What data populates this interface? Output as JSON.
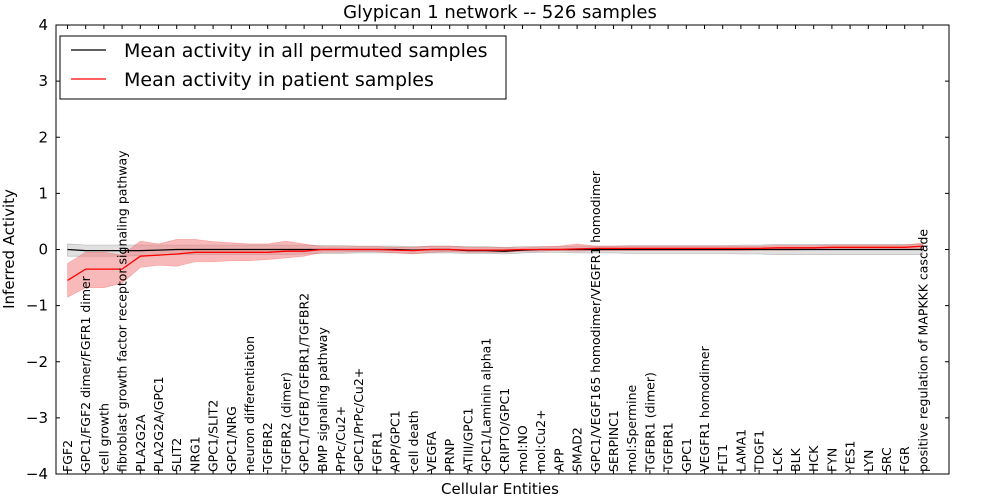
{
  "chart_data": {
    "type": "line",
    "title": "Glypican 1 network -- 526 samples",
    "xlabel": "Cellular Entities",
    "ylabel": "Inferred Activity",
    "ylim": [
      -4,
      4
    ],
    "yticks": [
      -4,
      -3,
      -2,
      -1,
      0,
      1,
      2,
      3,
      4
    ],
    "ytick_labels": [
      "−4",
      "−3",
      "−2",
      "−1",
      "0",
      "1",
      "2",
      "3",
      "4"
    ],
    "legend_position": "top-left",
    "categories": [
      "FGF2",
      "GPC1/FGF2 dimer/FGFR1 dimer",
      "cell growth",
      "fibroblast growth factor receptor signaling pathway",
      "PLA2G2A",
      "PLA2G2A/GPC1",
      "SLIT2",
      "NRG1",
      "GPC1/SLIT2",
      "GPC1/NRG",
      "neuron differentiation",
      "TGFBR2",
      "TGFBR2 (dimer)",
      "GPC1/TGFB/TGFBR1/TGFBR2",
      "BMP signaling pathway",
      "PrPc/Cu2+",
      "GPC1/PrPc/Cu2+",
      "FGFR1",
      "APP/GPC1",
      "cell death",
      "VEGFA",
      "PRNP",
      "ATIII/GPC1",
      "GPC1/Laminin alpha1",
      "CRIPTO/GPC1",
      "mol:NO",
      "mol:Cu2+",
      "APP",
      "SMAD2",
      "GPC1/VEGF165 homodimer/VEGFR1 homodimer",
      "SERPINC1",
      "mol:Spermine",
      "TGFBR1 (dimer)",
      "TGFBR1",
      "GPC1",
      "VEGFR1 homodimer",
      "FLT1",
      "LAMA1",
      "TDGF1",
      "LCK",
      "BLK",
      "HCK",
      "FYN",
      "YES1",
      "LYN",
      "SRC",
      "FGR",
      "positive regulation of MAPKKK cascade"
    ],
    "series": [
      {
        "name": "Mean activity in all permuted samples",
        "color": "#000000",
        "band_color": "#bbbbbb",
        "values": [
          0.0,
          -0.02,
          -0.02,
          -0.02,
          -0.02,
          -0.01,
          0.0,
          0.0,
          0.0,
          0.0,
          0.0,
          0.0,
          0.0,
          0.0,
          0.0,
          0.0,
          0.0,
          0.0,
          0.0,
          -0.01,
          0.0,
          0.0,
          -0.02,
          -0.02,
          -0.03,
          -0.01,
          0.0,
          0.0,
          0.0,
          0.0,
          0.0,
          0.0,
          0.0,
          0.0,
          0.0,
          0.0,
          0.0,
          0.0,
          0.0,
          0.0,
          0.0,
          0.0,
          0.0,
          0.0,
          0.0,
          0.0,
          0.0,
          0.0
        ],
        "lower": [
          -0.12,
          -0.12,
          -0.12,
          -0.12,
          -0.11,
          -0.1,
          -0.09,
          -0.09,
          -0.09,
          -0.09,
          -0.09,
          -0.09,
          -0.09,
          -0.08,
          -0.07,
          -0.07,
          -0.06,
          -0.06,
          -0.06,
          -0.07,
          -0.06,
          -0.06,
          -0.07,
          -0.07,
          -0.08,
          -0.06,
          -0.05,
          -0.05,
          -0.06,
          -0.06,
          -0.06,
          -0.07,
          -0.07,
          -0.07,
          -0.07,
          -0.07,
          -0.07,
          -0.08,
          -0.08,
          -0.09,
          -0.09,
          -0.09,
          -0.09,
          -0.09,
          -0.09,
          -0.09,
          -0.09,
          -0.09
        ],
        "upper": [
          0.1,
          0.08,
          0.08,
          0.08,
          0.08,
          0.08,
          0.08,
          0.08,
          0.08,
          0.08,
          0.08,
          0.08,
          0.08,
          0.08,
          0.07,
          0.07,
          0.06,
          0.06,
          0.06,
          0.05,
          0.06,
          0.06,
          0.05,
          0.05,
          0.04,
          0.05,
          0.05,
          0.05,
          0.06,
          0.06,
          0.06,
          0.07,
          0.07,
          0.07,
          0.07,
          0.07,
          0.07,
          0.08,
          0.08,
          0.09,
          0.09,
          0.09,
          0.09,
          0.09,
          0.09,
          0.09,
          0.09,
          0.09
        ]
      },
      {
        "name": "Mean activity in patient samples",
        "color": "#ff0000",
        "band_color": "#f08080",
        "values": [
          -0.55,
          -0.35,
          -0.35,
          -0.35,
          -0.12,
          -0.1,
          -0.08,
          -0.05,
          -0.05,
          -0.05,
          -0.05,
          -0.05,
          -0.03,
          -0.03,
          0.0,
          0.0,
          0.0,
          0.0,
          -0.01,
          -0.02,
          0.0,
          0.0,
          -0.01,
          -0.01,
          -0.01,
          0.0,
          0.0,
          0.0,
          0.01,
          0.02,
          0.02,
          0.02,
          0.02,
          0.02,
          0.02,
          0.02,
          0.02,
          0.02,
          0.02,
          0.03,
          0.03,
          0.03,
          0.04,
          0.04,
          0.04,
          0.04,
          0.04,
          0.06
        ],
        "lower": [
          -0.85,
          -0.68,
          -0.68,
          -0.6,
          -0.32,
          -0.28,
          -0.3,
          -0.22,
          -0.22,
          -0.2,
          -0.2,
          -0.18,
          -0.15,
          -0.12,
          -0.05,
          -0.05,
          -0.04,
          -0.04,
          -0.06,
          -0.08,
          -0.05,
          -0.04,
          -0.05,
          -0.05,
          -0.05,
          -0.03,
          -0.03,
          -0.02,
          -0.03,
          -0.02,
          -0.02,
          -0.02,
          -0.02,
          -0.02,
          -0.02,
          -0.02,
          -0.02,
          -0.02,
          -0.01,
          -0.01,
          -0.01,
          0.0,
          0.0,
          0.0,
          0.0,
          0.0,
          0.0,
          0.0
        ],
        "upper": [
          -0.25,
          -0.05,
          -0.05,
          -0.1,
          0.15,
          0.1,
          0.18,
          0.18,
          0.14,
          0.12,
          0.1,
          0.1,
          0.15,
          0.1,
          0.05,
          0.05,
          0.05,
          0.05,
          0.04,
          0.04,
          0.06,
          0.06,
          0.04,
          0.04,
          0.03,
          0.03,
          0.05,
          0.06,
          0.1,
          0.06,
          0.06,
          0.06,
          0.06,
          0.06,
          0.06,
          0.06,
          0.06,
          0.06,
          0.06,
          0.07,
          0.07,
          0.07,
          0.08,
          0.08,
          0.08,
          0.08,
          0.08,
          0.12
        ]
      }
    ]
  }
}
